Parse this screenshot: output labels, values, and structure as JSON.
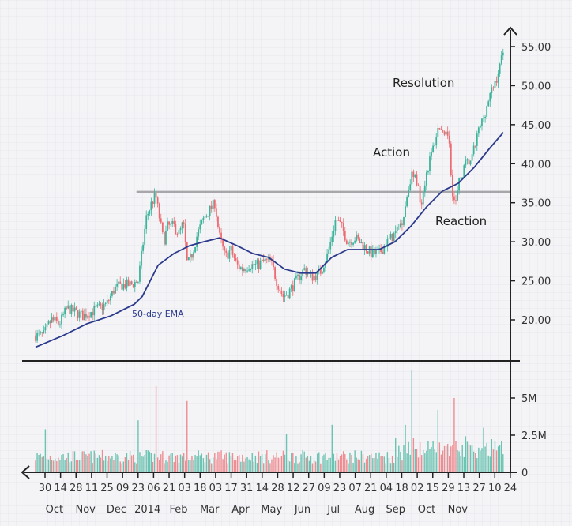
{
  "chart_data": {
    "type": "candlestick",
    "title": "",
    "price_axis": {
      "ticks": [
        "55.00",
        "50.00",
        "45.00",
        "40.00",
        "35.00",
        "30.00",
        "25.00",
        "20.00"
      ],
      "range": [
        20,
        55
      ]
    },
    "volume_axis": {
      "ticks": [
        "5M",
        "2.5M",
        "0"
      ],
      "values": [
        5,
        2.5,
        0
      ],
      "unit": "M"
    },
    "x_ticks": [
      "30",
      "14",
      "28",
      "11",
      "25",
      "09",
      "23",
      "06",
      "21",
      "03",
      "18",
      "03",
      "17",
      "31",
      "14",
      "28",
      "12",
      "27",
      "09",
      "23",
      "07",
      "21",
      "04",
      "18",
      "02",
      "15",
      "29",
      "13",
      "27",
      "10",
      "24"
    ],
    "month_labels": [
      {
        "label": "Oct",
        "t": 0.5
      },
      {
        "label": "Nov",
        "t": 2.5
      },
      {
        "label": "Dec",
        "t": 4.5
      },
      {
        "label": "2014",
        "t": 6.5
      },
      {
        "label": "Feb",
        "t": 8.5
      },
      {
        "label": "Mar",
        "t": 10.5
      },
      {
        "label": "Apr",
        "t": 12.5
      },
      {
        "label": "May",
        "t": 14.5
      },
      {
        "label": "Jun",
        "t": 16.5
      },
      {
        "label": "Jul",
        "t": 18.5
      },
      {
        "label": "Aug",
        "t": 20.5
      },
      {
        "label": "Sep",
        "t": 22.5
      },
      {
        "label": "Oct",
        "t": 24.5
      },
      {
        "label": "Nov",
        "t": 26.5
      }
    ],
    "price_path": [
      [
        -0.57,
        18
      ],
      [
        -0.1,
        18
      ],
      [
        0.38,
        20
      ],
      [
        0.86,
        19.5
      ],
      [
        1.33,
        21.5
      ],
      [
        1.81,
        21
      ],
      [
        2.28,
        20.5
      ],
      [
        2.76,
        21
      ],
      [
        3.23,
        21.5
      ],
      [
        3.71,
        22
      ],
      [
        4.18,
        24
      ],
      [
        4.66,
        24.5
      ],
      [
        5.13,
        24.5
      ],
      [
        5.61,
        25
      ],
      [
        5.85,
        29
      ],
      [
        6.08,
        33
      ],
      [
        6.42,
        35
      ],
      [
        6.65,
        36
      ],
      [
        6.89,
        33
      ],
      [
        7.13,
        30
      ],
      [
        7.37,
        32
      ],
      [
        7.75,
        32
      ],
      [
        8.08,
        31
      ],
      [
        8.32,
        32.5
      ],
      [
        8.56,
        27
      ],
      [
        8.79,
        28
      ],
      [
        9.17,
        31
      ],
      [
        9.55,
        33
      ],
      [
        9.89,
        34
      ],
      [
        10.22,
        35
      ],
      [
        10.46,
        31
      ],
      [
        10.84,
        28
      ],
      [
        11.17,
        29
      ],
      [
        11.55,
        27
      ],
      [
        11.88,
        26.5
      ],
      [
        12.26,
        27
      ],
      [
        12.74,
        27
      ],
      [
        13.21,
        27.5
      ],
      [
        13.59,
        27.5
      ],
      [
        13.93,
        25
      ],
      [
        14.31,
        23
      ],
      [
        14.64,
        23.5
      ],
      [
        15.11,
        25
      ],
      [
        15.59,
        26.5
      ],
      [
        16.06,
        25.5
      ],
      [
        16.54,
        26
      ],
      [
        17.02,
        28.5
      ],
      [
        17.49,
        33
      ],
      [
        17.82,
        32
      ],
      [
        18.2,
        30
      ],
      [
        18.68,
        30.5
      ],
      [
        19.15,
        29.5
      ],
      [
        19.63,
        28.5
      ],
      [
        20.1,
        28.5
      ],
      [
        20.58,
        30
      ],
      [
        21.05,
        31
      ],
      [
        21.53,
        33
      ],
      [
        22.01,
        38.5
      ],
      [
        22.34,
        38
      ],
      [
        22.62,
        35
      ],
      [
        22.96,
        39
      ],
      [
        23.34,
        42
      ],
      [
        23.72,
        45
      ],
      [
        24.0,
        43
      ],
      [
        24.29,
        44
      ],
      [
        24.48,
        37
      ],
      [
        24.67,
        34.5
      ],
      [
        24.95,
        38
      ],
      [
        25.33,
        40
      ],
      [
        25.67,
        40.5
      ],
      [
        26.05,
        44
      ],
      [
        26.38,
        46
      ],
      [
        26.66,
        48
      ],
      [
        27.0,
        50
      ],
      [
        27.33,
        52
      ],
      [
        27.57,
        55
      ]
    ],
    "ema_path": [
      [
        -0.57,
        16.5
      ],
      [
        1.09,
        18
      ],
      [
        2.52,
        19.5
      ],
      [
        3.95,
        20.5
      ],
      [
        5.37,
        22
      ],
      [
        5.85,
        23
      ],
      [
        6.8,
        27
      ],
      [
        7.75,
        28.5
      ],
      [
        8.7,
        29.5
      ],
      [
        9.55,
        30
      ],
      [
        10.5,
        30.5
      ],
      [
        11.55,
        29.5
      ],
      [
        12.5,
        28.5
      ],
      [
        13.45,
        28
      ],
      [
        14.4,
        26.5
      ],
      [
        15.35,
        26
      ],
      [
        16.3,
        26
      ],
      [
        17.25,
        28
      ],
      [
        18.2,
        29
      ],
      [
        19.15,
        29
      ],
      [
        20.1,
        29
      ],
      [
        21.05,
        30
      ],
      [
        22.01,
        32
      ],
      [
        22.96,
        34.5
      ],
      [
        23.91,
        36.5
      ],
      [
        24.86,
        37.5
      ],
      [
        25.81,
        39.5
      ],
      [
        26.76,
        42
      ],
      [
        27.57,
        44
      ]
    ],
    "volume_spikes": [
      [
        0,
        2.9
      ],
      [
        5.6,
        3.5
      ],
      [
        6.7,
        5.8
      ],
      [
        8.5,
        4.8
      ],
      [
        14.5,
        2.6
      ],
      [
        17.3,
        3.2
      ],
      [
        22.1,
        6.9
      ],
      [
        23.6,
        4.2
      ],
      [
        24.6,
        5
      ],
      [
        21.7,
        3.2
      ],
      [
        26.4,
        3
      ]
    ],
    "resistance_level": 36.4,
    "resistance_from_t": 5.5,
    "annotations": [
      "Resolution",
      "Action",
      "Reaction"
    ],
    "ema_label": "50-day EMA",
    "colors": {
      "up": "#3db39b",
      "down": "#ec6b70",
      "ema": "#2b3a8c",
      "resistance": "#a7a7ab",
      "axis": "#222222"
    }
  }
}
